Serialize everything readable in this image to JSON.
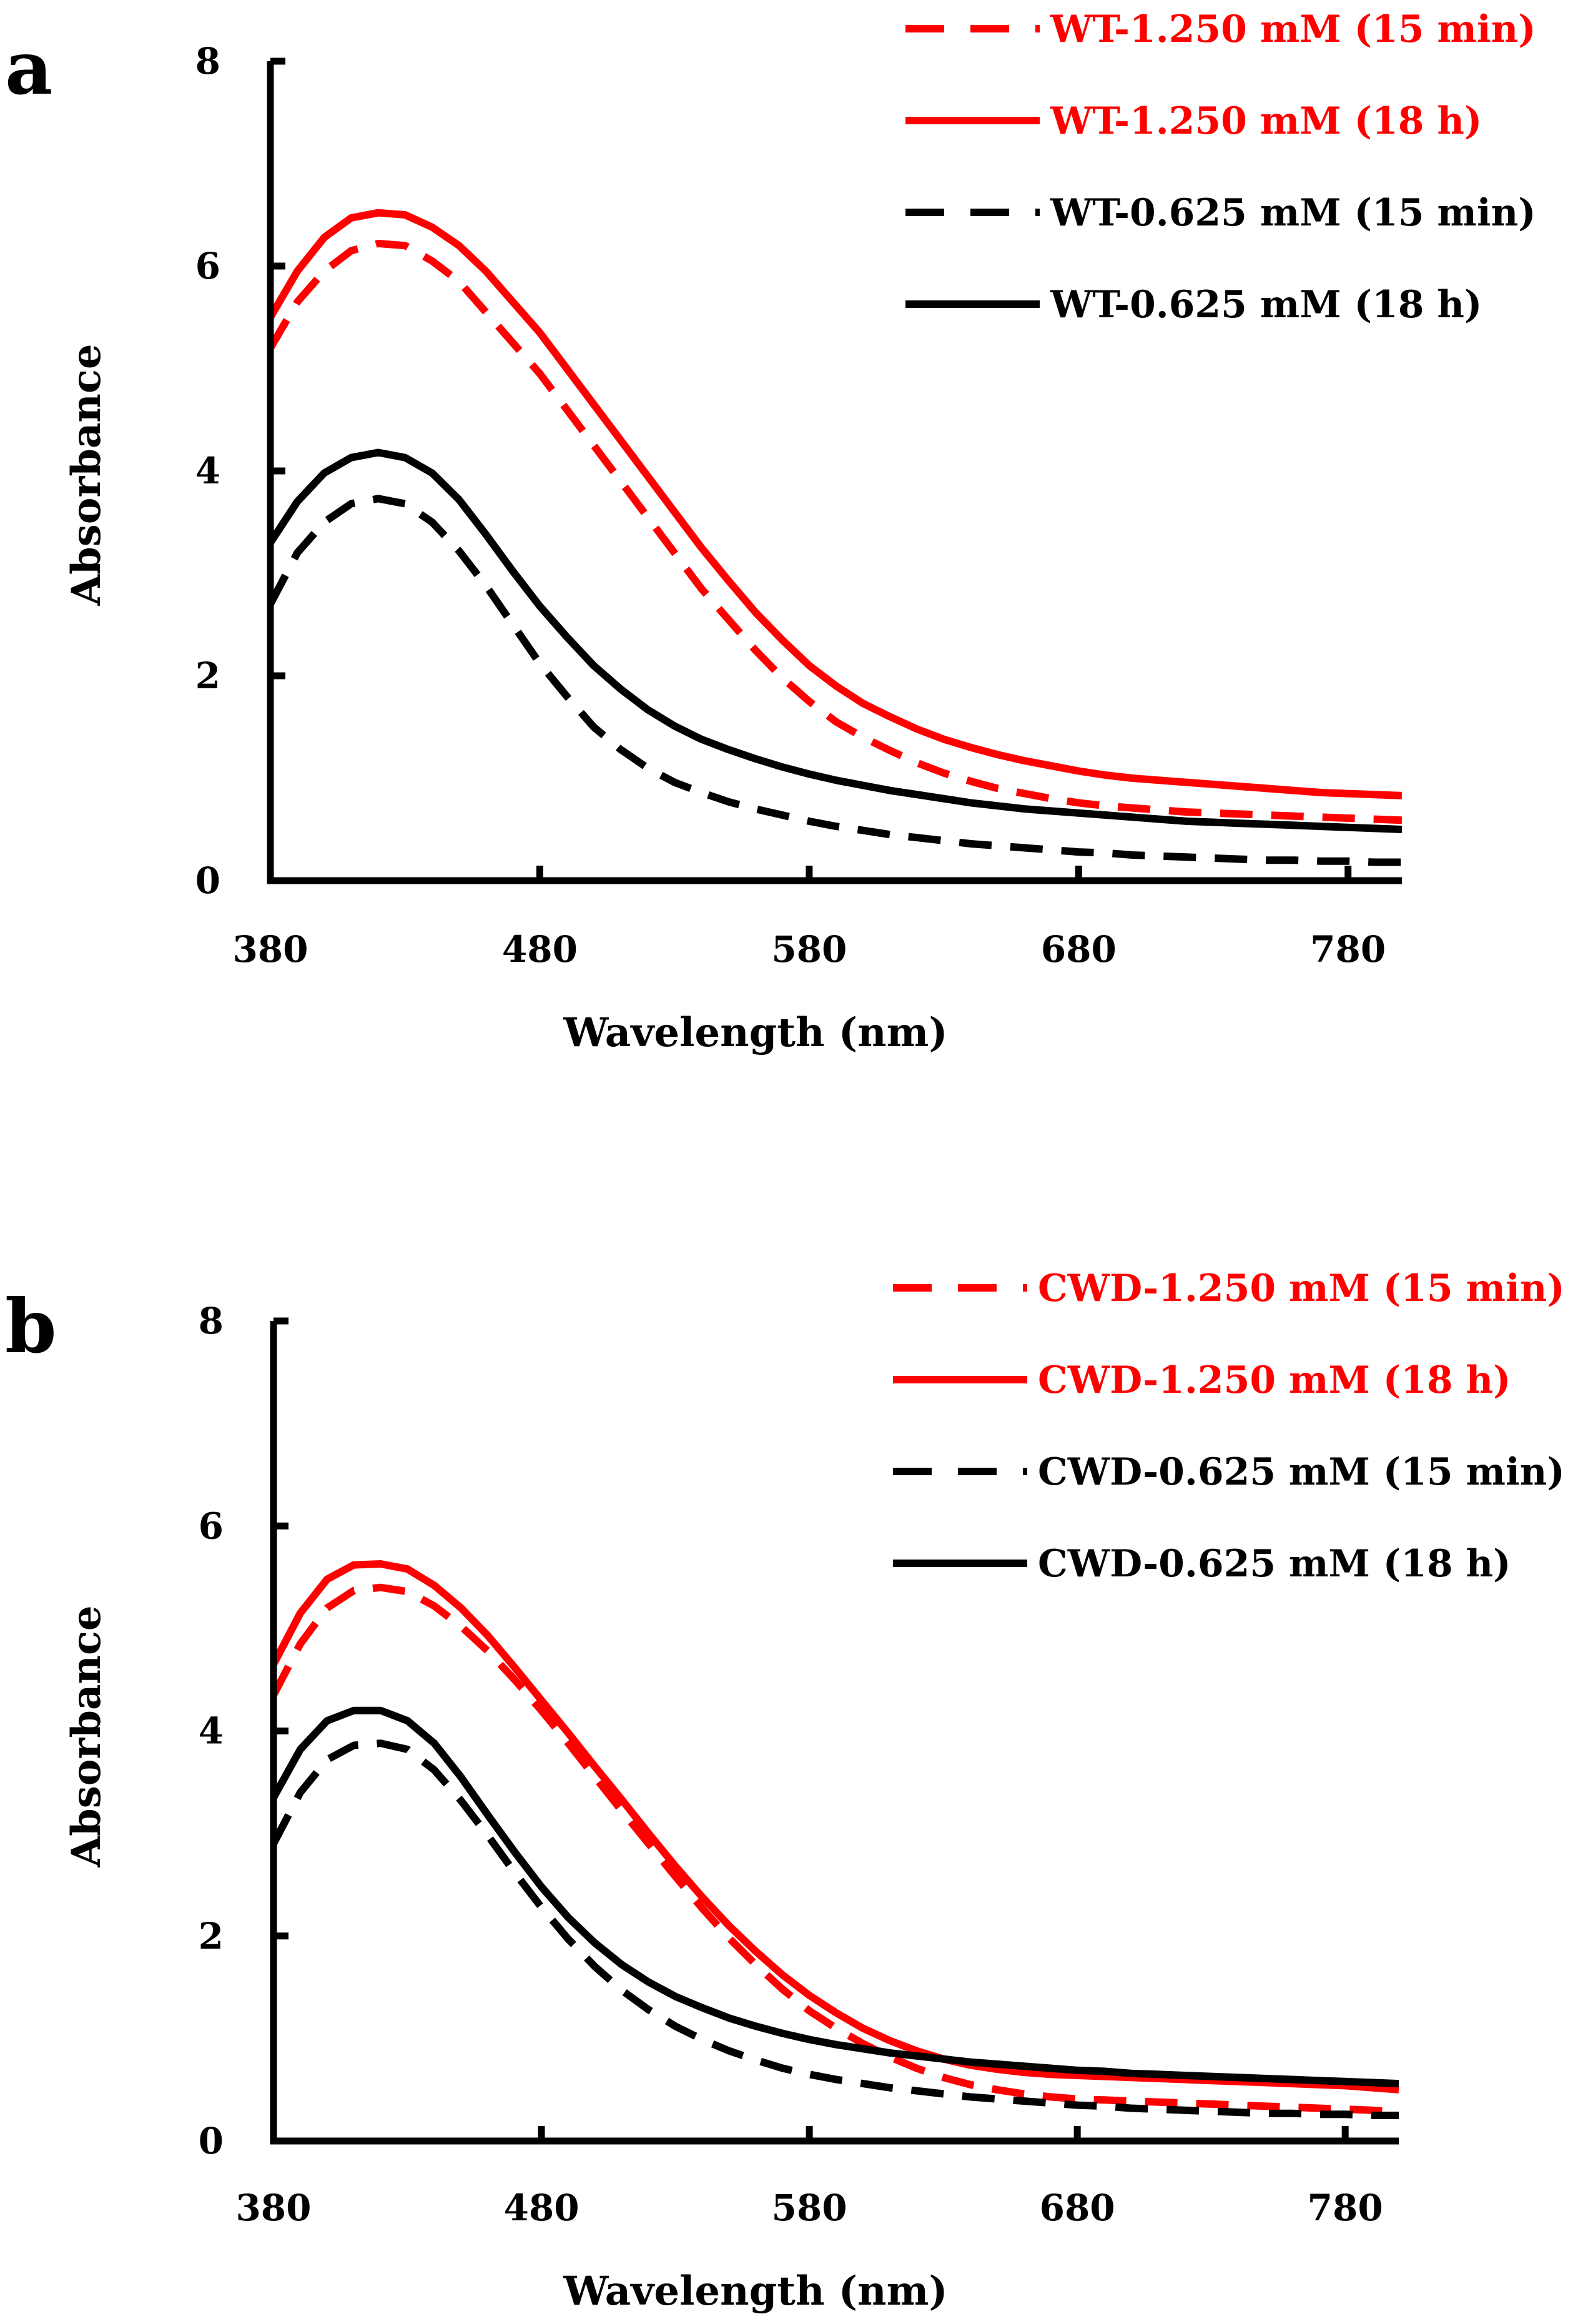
{
  "chart_data": [
    {
      "panel_label": "a",
      "type": "line",
      "xlabel": "Wavelength (nm)",
      "ylabel": "Absorbance",
      "xlim": [
        380,
        800
      ],
      "ylim": [
        0,
        8
      ],
      "xticks": [
        380,
        480,
        580,
        680,
        780
      ],
      "yticks": [
        0,
        2,
        4,
        6,
        8
      ],
      "x": [
        380,
        390,
        400,
        410,
        420,
        430,
        440,
        450,
        460,
        470,
        480,
        490,
        500,
        510,
        520,
        530,
        540,
        550,
        560,
        570,
        580,
        590,
        600,
        610,
        620,
        630,
        640,
        650,
        660,
        670,
        680,
        690,
        700,
        710,
        720,
        730,
        740,
        750,
        760,
        770,
        780,
        790,
        800
      ],
      "series": [
        {
          "name": "WT-1.250 mM (15 min)",
          "color": "#ff0000",
          "dash": "dashed",
          "values": [
            5.2,
            5.65,
            5.95,
            6.15,
            6.22,
            6.2,
            6.05,
            5.85,
            5.55,
            5.25,
            4.95,
            4.6,
            4.25,
            3.9,
            3.55,
            3.2,
            2.85,
            2.55,
            2.25,
            1.98,
            1.75,
            1.55,
            1.4,
            1.27,
            1.15,
            1.05,
            0.97,
            0.9,
            0.85,
            0.8,
            0.76,
            0.73,
            0.71,
            0.69,
            0.67,
            0.66,
            0.65,
            0.64,
            0.63,
            0.62,
            0.61,
            0.6,
            0.59
          ]
        },
        {
          "name": "WT-1.250 mM (18 h)",
          "color": "#ff0000",
          "dash": "solid",
          "values": [
            5.5,
            5.95,
            6.28,
            6.47,
            6.52,
            6.5,
            6.38,
            6.2,
            5.95,
            5.65,
            5.35,
            5.0,
            4.65,
            4.3,
            3.95,
            3.6,
            3.25,
            2.93,
            2.62,
            2.35,
            2.1,
            1.9,
            1.73,
            1.6,
            1.48,
            1.38,
            1.3,
            1.23,
            1.17,
            1.12,
            1.07,
            1.03,
            1.0,
            0.98,
            0.96,
            0.94,
            0.92,
            0.9,
            0.88,
            0.86,
            0.85,
            0.84,
            0.83
          ]
        },
        {
          "name": "WT-0.625 mM (15 min)",
          "color": "#000000",
          "dash": "dashed",
          "values": [
            2.7,
            3.2,
            3.5,
            3.68,
            3.73,
            3.68,
            3.5,
            3.22,
            2.88,
            2.5,
            2.12,
            1.8,
            1.5,
            1.28,
            1.1,
            0.96,
            0.86,
            0.77,
            0.7,
            0.64,
            0.58,
            0.53,
            0.49,
            0.45,
            0.42,
            0.39,
            0.36,
            0.34,
            0.32,
            0.3,
            0.28,
            0.27,
            0.25,
            0.24,
            0.23,
            0.22,
            0.21,
            0.2,
            0.2,
            0.19,
            0.19,
            0.18,
            0.18
          ]
        },
        {
          "name": "WT-0.625 mM (18 h)",
          "color": "#000000",
          "dash": "solid",
          "values": [
            3.3,
            3.7,
            3.98,
            4.13,
            4.18,
            4.13,
            3.98,
            3.72,
            3.38,
            3.02,
            2.68,
            2.38,
            2.1,
            1.87,
            1.67,
            1.51,
            1.38,
            1.28,
            1.19,
            1.11,
            1.04,
            0.98,
            0.93,
            0.88,
            0.84,
            0.8,
            0.76,
            0.73,
            0.7,
            0.68,
            0.66,
            0.64,
            0.62,
            0.6,
            0.58,
            0.57,
            0.56,
            0.55,
            0.54,
            0.53,
            0.52,
            0.51,
            0.5
          ]
        }
      ]
    },
    {
      "panel_label": "b",
      "type": "line",
      "xlabel": "Wavelength (nm)",
      "ylabel": "Absorbance",
      "xlim": [
        380,
        800
      ],
      "ylim": [
        0,
        8
      ],
      "xticks": [
        380,
        480,
        580,
        680,
        780
      ],
      "yticks": [
        0,
        2,
        4,
        6,
        8
      ],
      "x": [
        380,
        390,
        400,
        410,
        420,
        430,
        440,
        450,
        460,
        470,
        480,
        490,
        500,
        510,
        520,
        530,
        540,
        550,
        560,
        570,
        580,
        590,
        600,
        610,
        620,
        630,
        640,
        650,
        660,
        670,
        680,
        690,
        700,
        710,
        720,
        730,
        740,
        750,
        760,
        770,
        780,
        790,
        800
      ],
      "series": [
        {
          "name": "CWD-1.250 mM (15 min)",
          "color": "#ff0000",
          "dash": "dashed",
          "values": [
            4.35,
            4.85,
            5.2,
            5.37,
            5.4,
            5.36,
            5.22,
            5.02,
            4.78,
            4.5,
            4.2,
            3.88,
            3.55,
            3.22,
            2.9,
            2.58,
            2.27,
            1.98,
            1.72,
            1.48,
            1.27,
            1.1,
            0.95,
            0.82,
            0.71,
            0.62,
            0.55,
            0.5,
            0.46,
            0.43,
            0.41,
            0.4,
            0.39,
            0.38,
            0.37,
            0.36,
            0.35,
            0.34,
            0.33,
            0.32,
            0.31,
            0.3,
            0.28
          ]
        },
        {
          "name": "CWD-1.250 mM (18 h)",
          "color": "#ff0000",
          "dash": "solid",
          "values": [
            4.65,
            5.15,
            5.48,
            5.62,
            5.63,
            5.58,
            5.42,
            5.2,
            4.93,
            4.62,
            4.3,
            3.98,
            3.65,
            3.33,
            3.0,
            2.68,
            2.38,
            2.1,
            1.85,
            1.62,
            1.42,
            1.25,
            1.1,
            0.98,
            0.88,
            0.8,
            0.74,
            0.7,
            0.67,
            0.65,
            0.64,
            0.63,
            0.62,
            0.61,
            0.6,
            0.59,
            0.58,
            0.57,
            0.56,
            0.55,
            0.54,
            0.52,
            0.5
          ]
        },
        {
          "name": "CWD-0.625 mM (15 min)",
          "color": "#000000",
          "dash": "dashed",
          "values": [
            2.9,
            3.4,
            3.72,
            3.86,
            3.88,
            3.82,
            3.62,
            3.32,
            2.98,
            2.62,
            2.28,
            1.97,
            1.7,
            1.47,
            1.28,
            1.12,
            0.99,
            0.88,
            0.79,
            0.71,
            0.65,
            0.6,
            0.56,
            0.52,
            0.49,
            0.46,
            0.43,
            0.41,
            0.39,
            0.37,
            0.35,
            0.34,
            0.32,
            0.31,
            0.3,
            0.29,
            0.28,
            0.27,
            0.27,
            0.26,
            0.26,
            0.25,
            0.25
          ]
        },
        {
          "name": "CWD-0.625 mM (18 h)",
          "color": "#000000",
          "dash": "solid",
          "values": [
            3.35,
            3.82,
            4.1,
            4.2,
            4.2,
            4.1,
            3.88,
            3.55,
            3.18,
            2.82,
            2.48,
            2.18,
            1.93,
            1.72,
            1.55,
            1.41,
            1.3,
            1.2,
            1.12,
            1.05,
            0.99,
            0.94,
            0.9,
            0.86,
            0.83,
            0.8,
            0.77,
            0.75,
            0.73,
            0.71,
            0.69,
            0.68,
            0.66,
            0.65,
            0.64,
            0.63,
            0.62,
            0.61,
            0.6,
            0.59,
            0.58,
            0.57,
            0.56
          ]
        }
      ]
    }
  ]
}
